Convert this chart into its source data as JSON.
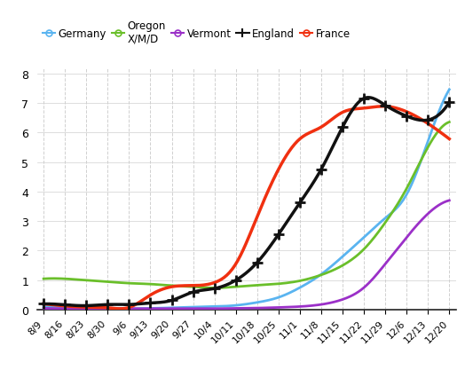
{
  "x_labels": [
    "8/9",
    "8/16",
    "8/23",
    "8/30",
    "9/6",
    "9/13",
    "9/20",
    "9/27",
    "10/4",
    "10/11",
    "10/18",
    "10/25",
    "11/1",
    "11/8",
    "11/15",
    "11/22",
    "11/29",
    "12/6",
    "12/13",
    "12/20"
  ],
  "ylim": [
    0,
    8.2
  ],
  "yticks": [
    0,
    1,
    2,
    3,
    4,
    5,
    6,
    7,
    8
  ],
  "series": {
    "Germany": {
      "color": "#5ab4f0",
      "linewidth": 2.0,
      "values": [
        0.1,
        0.07,
        0.05,
        0.04,
        0.04,
        0.05,
        0.07,
        0.09,
        0.11,
        0.15,
        0.25,
        0.42,
        0.75,
        1.2,
        1.8,
        2.45,
        3.1,
        3.9,
        5.7,
        7.45
      ]
    },
    "Oregon X/M/D": {
      "color": "#6abf2a",
      "linewidth": 2.0,
      "values": [
        1.05,
        1.05,
        1.0,
        0.95,
        0.9,
        0.87,
        0.82,
        0.78,
        0.74,
        0.78,
        0.83,
        0.88,
        0.98,
        1.18,
        1.5,
        2.05,
        2.95,
        4.1,
        5.5,
        6.35
      ]
    },
    "Vermont": {
      "color": "#9b30c8",
      "linewidth": 2.0,
      "values": [
        0.05,
        0.04,
        0.04,
        0.04,
        0.04,
        0.04,
        0.04,
        0.04,
        0.04,
        0.05,
        0.06,
        0.08,
        0.11,
        0.18,
        0.35,
        0.75,
        1.55,
        2.45,
        3.25,
        3.7
      ]
    },
    "England": {
      "color": "#111111",
      "linewidth": 2.5,
      "values": [
        0.2,
        0.17,
        0.14,
        0.18,
        0.18,
        0.23,
        0.32,
        0.6,
        0.72,
        1.0,
        1.6,
        2.55,
        3.62,
        4.75,
        6.18,
        7.15,
        6.92,
        6.55,
        6.42,
        7.02
      ]
    },
    "France": {
      "color": "#f03010",
      "linewidth": 2.5,
      "values": [
        0.2,
        0.13,
        0.09,
        0.07,
        0.08,
        0.5,
        0.78,
        0.82,
        0.92,
        1.55,
        3.15,
        4.75,
        5.78,
        6.18,
        6.68,
        6.82,
        6.88,
        6.7,
        6.3,
        5.78
      ]
    }
  },
  "legend_order": [
    "Germany",
    "Oregon X/M/D",
    "Vermont",
    "England",
    "France"
  ],
  "background_color": "#ffffff",
  "grid_color": "#d0d0d0"
}
